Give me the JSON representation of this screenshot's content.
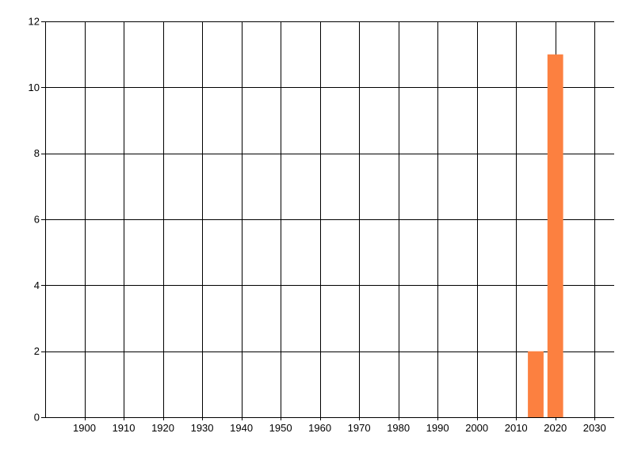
{
  "chart_data": {
    "type": "bar",
    "title": "",
    "xlabel": "",
    "ylabel": "",
    "categories": [
      2015,
      2020
    ],
    "values": [
      2,
      11
    ],
    "bars": [
      {
        "x": 2015,
        "value": 2
      },
      {
        "x": 2020,
        "value": 11
      }
    ],
    "x_tick_labels": [
      "1900",
      "1910",
      "1920",
      "1930",
      "1940",
      "1950",
      "1960",
      "1970",
      "1980",
      "1990",
      "2000",
      "2010",
      "2020",
      "2030"
    ],
    "x_ticks": [
      1900,
      1910,
      1920,
      1930,
      1940,
      1950,
      1960,
      1970,
      1980,
      1990,
      2000,
      2010,
      2020,
      2030
    ],
    "y_tick_labels": [
      "0",
      "2",
      "4",
      "6",
      "8",
      "10",
      "12"
    ],
    "y_ticks": [
      0,
      2,
      4,
      6,
      8,
      10,
      12
    ],
    "x_range": [
      1890,
      2035
    ],
    "ylim": [
      0,
      12
    ],
    "bar_width_years": 4,
    "grid": "on",
    "legend": "none",
    "colors": {
      "bar": "#FC8040",
      "grid": "#000000",
      "axis": "#000000",
      "text": "#000000",
      "background": "#FFFFFF"
    }
  }
}
